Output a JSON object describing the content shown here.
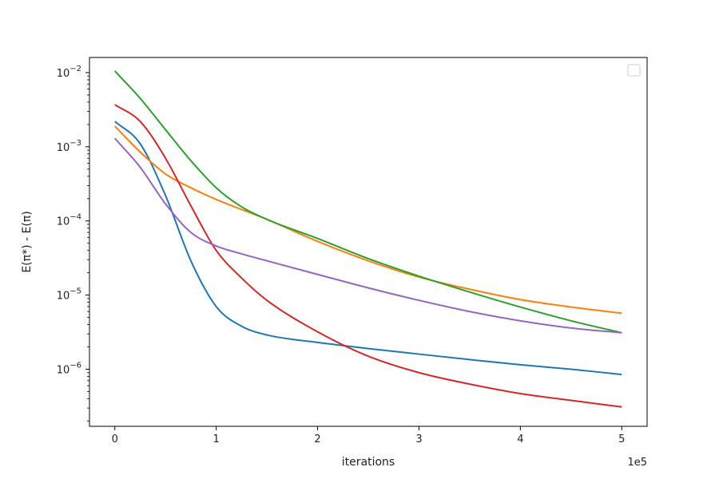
{
  "chart_data": {
    "type": "line",
    "title": "",
    "xlabel": "iterations",
    "ylabel": "E(π*) - E(π)",
    "x_multiplier_label": "1e5",
    "x_scale": 100000,
    "y_scale": "log",
    "xlim": [
      -25000,
      525000
    ],
    "ylim": [
      1.7e-07,
      0.016
    ],
    "x_ticks": [
      0,
      1,
      2,
      3,
      4,
      5
    ],
    "y_ticks": [
      {
        "base": "10",
        "exp": "-2",
        "value": 0.01
      },
      {
        "base": "10",
        "exp": "-3",
        "value": 0.001
      },
      {
        "base": "10",
        "exp": "-4",
        "value": 0.0001
      },
      {
        "base": "10",
        "exp": "-5",
        "value": 1e-05
      },
      {
        "base": "10",
        "exp": "-6",
        "value": 1e-06
      }
    ],
    "grid": false,
    "legend": "top-right",
    "series": [
      {
        "color": "#1f77b4",
        "points": [
          [
            0,
            0.0022
          ],
          [
            25000,
            0.0011
          ],
          [
            50000,
            0.00022
          ],
          [
            75000,
            2.9e-05
          ],
          [
            100000,
            7e-06
          ],
          [
            125000,
            3.8e-06
          ],
          [
            150000,
            2.9e-06
          ],
          [
            200000,
            2.3e-06
          ],
          [
            250000,
            1.9e-06
          ],
          [
            300000,
            1.6e-06
          ],
          [
            350000,
            1.35e-06
          ],
          [
            400000,
            1.15e-06
          ],
          [
            450000,
            1e-06
          ],
          [
            500000,
            8.5e-07
          ]
        ]
      },
      {
        "color": "#ff7f0e",
        "points": [
          [
            0,
            0.0019
          ],
          [
            25000,
            0.00085
          ],
          [
            50000,
            0.00043
          ],
          [
            75000,
            0.00028
          ],
          [
            100000,
            0.000195
          ],
          [
            150000,
            0.000105
          ],
          [
            200000,
            5.3e-05
          ],
          [
            250000,
            2.9e-05
          ],
          [
            300000,
            1.75e-05
          ],
          [
            350000,
            1.2e-05
          ],
          [
            400000,
            8.7e-06
          ],
          [
            450000,
            6.9e-06
          ],
          [
            500000,
            5.7e-06
          ]
        ]
      },
      {
        "color": "#2ca02c",
        "points": [
          [
            0,
            0.0105
          ],
          [
            25000,
            0.0045
          ],
          [
            50000,
            0.0017
          ],
          [
            75000,
            0.00065
          ],
          [
            100000,
            0.00028
          ],
          [
            125000,
            0.000155
          ],
          [
            150000,
            0.000105
          ],
          [
            200000,
            5.8e-05
          ],
          [
            250000,
            3.1e-05
          ],
          [
            300000,
            1.8e-05
          ],
          [
            350000,
            1.1e-05
          ],
          [
            400000,
            6.9e-06
          ],
          [
            450000,
            4.5e-06
          ],
          [
            500000,
            3.1e-06
          ]
        ]
      },
      {
        "color": "#d62728",
        "points": [
          [
            0,
            0.0037
          ],
          [
            25000,
            0.0022
          ],
          [
            50000,
            0.0007
          ],
          [
            75000,
            0.00016
          ],
          [
            100000,
            4e-05
          ],
          [
            125000,
            1.7e-05
          ],
          [
            150000,
            8.5e-06
          ],
          [
            200000,
            3.2e-06
          ],
          [
            250000,
            1.5e-06
          ],
          [
            300000,
            9e-07
          ],
          [
            350000,
            6.3e-07
          ],
          [
            400000,
            4.7e-07
          ],
          [
            450000,
            3.8e-07
          ],
          [
            500000,
            3.1e-07
          ]
        ]
      },
      {
        "color": "#9467bd",
        "points": [
          [
            0,
            0.0013
          ],
          [
            25000,
            0.00053
          ],
          [
            50000,
            0.00017
          ],
          [
            75000,
            7e-05
          ],
          [
            100000,
            4.6e-05
          ],
          [
            125000,
            3.6e-05
          ],
          [
            150000,
            2.9e-05
          ],
          [
            200000,
            1.9e-05
          ],
          [
            250000,
            1.25e-05
          ],
          [
            300000,
            8.5e-06
          ],
          [
            350000,
            6e-06
          ],
          [
            400000,
            4.5e-06
          ],
          [
            450000,
            3.6e-06
          ],
          [
            500000,
            3.1e-06
          ]
        ]
      }
    ]
  }
}
